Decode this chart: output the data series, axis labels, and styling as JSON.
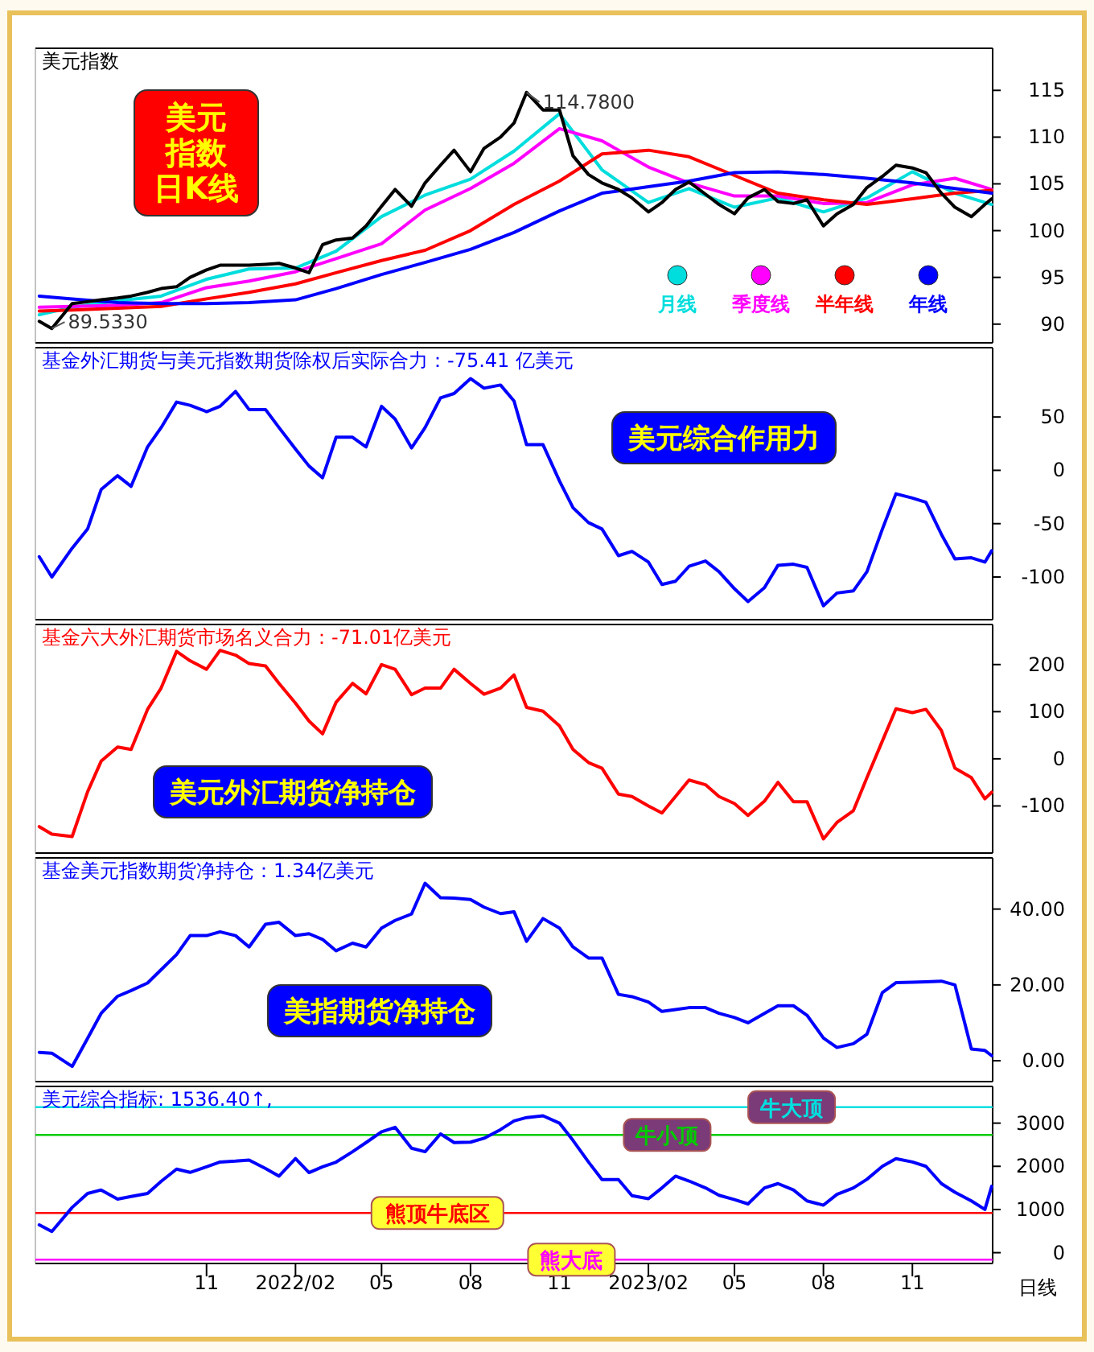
{
  "chart_data": [
    {
      "type": "line",
      "title": "美元指数",
      "annotations": [
        "美元指数日K线",
        {
          "text": "114.7800",
          "x": "2022-09-28",
          "y": 114.78
        },
        {
          "text": "89.5330",
          "x": "2021-05-25",
          "y": 89.533
        }
      ],
      "x": [
        "2021-05-12",
        "2021-05-25",
        "2021-06-15",
        "2021-07-01",
        "2021-07-15",
        "2021-08-01",
        "2021-08-15",
        "2021-09-01",
        "2021-09-15",
        "2021-10-01",
        "2021-10-15",
        "2021-11-01",
        "2021-11-15",
        "2021-12-01",
        "2021-12-15",
        "2022-01-01",
        "2022-01-15",
        "2022-02-01",
        "2022-02-15",
        "2022-03-01",
        "2022-03-15",
        "2022-04-01",
        "2022-04-15",
        "2022-05-01",
        "2022-05-15",
        "2022-06-01",
        "2022-06-15",
        "2022-07-01",
        "2022-07-15",
        "2022-08-01",
        "2022-08-15",
        "2022-09-01",
        "2022-09-15",
        "2022-09-28",
        "2022-10-15",
        "2022-11-01",
        "2022-11-15",
        "2022-12-01",
        "2022-12-15",
        "2023-01-01",
        "2023-01-15",
        "2023-02-01",
        "2023-02-15",
        "2023-03-01",
        "2023-03-15",
        "2023-04-01",
        "2023-04-15",
        "2023-05-01",
        "2023-05-15",
        "2023-06-01",
        "2023-06-15",
        "2023-07-01",
        "2023-07-15",
        "2023-08-01",
        "2023-08-15",
        "2023-09-01",
        "2023-09-15",
        "2023-10-01",
        "2023-10-15",
        "2023-11-01",
        "2023-11-15",
        "2023-12-01",
        "2023-12-15",
        "2024-01-01",
        "2024-01-15",
        "2024-01-22"
      ],
      "xlim": [
        "2021-05-08",
        "2024-01-23"
      ],
      "ylim": [
        88,
        119.5
      ],
      "yticks": [
        90,
        95,
        100,
        105,
        110,
        115
      ],
      "tick_labels": "y",
      "legend": "bottom right",
      "series": [
        {
          "color": "#000000",
          "values": [
            90.3,
            89.533,
            92.2,
            92.4,
            92.6,
            92.8,
            93.0,
            93.4,
            93.8,
            94.0,
            95.0,
            95.8,
            96.3,
            96.3,
            96.3,
            96.4,
            96.5,
            96.0,
            95.5,
            98.5,
            99.0,
            99.2,
            100.5,
            102.6,
            104.4,
            102.6,
            105.1,
            107,
            108.6,
            106.3,
            108.8,
            110,
            111.5,
            114.78,
            112.9,
            112.9,
            108,
            106,
            105.1,
            104.4,
            103.5,
            102,
            103,
            104.4,
            105.2,
            103.9,
            102.8,
            101.8,
            103.5,
            104.4,
            103.1,
            102.9,
            103.3,
            100.5,
            101.8,
            102.8,
            104.6,
            105.8,
            107,
            106.7,
            106.2,
            104,
            102.5,
            101.5,
            102.8,
            103.4
          ]
        },
        {
          "name": "月线",
          "color": "#00dddd",
          "x": [
            "2021-05-12",
            "2021-06-15",
            "2021-08-01",
            "2021-09-15",
            "2021-11-01",
            "2021-12-15",
            "2022-02-01",
            "2022-03-15",
            "2022-05-01",
            "2022-06-15",
            "2022-08-01",
            "2022-09-15",
            "2022-11-01",
            "2022-12-15",
            "2023-02-01",
            "2023-03-15",
            "2023-05-01",
            "2023-06-15",
            "2023-08-01",
            "2023-09-15",
            "2023-11-01",
            "2023-12-15",
            "2024-01-22"
          ],
          "values": [
            91.0,
            91.8,
            92.5,
            93.0,
            94.8,
            95.9,
            96.0,
            97.8,
            101.5,
            103.8,
            105.5,
            108.5,
            112.5,
            106.5,
            103.0,
            104.5,
            102.5,
            103.5,
            102.0,
            103.5,
            106.3,
            104.0,
            102.8
          ]
        },
        {
          "name": "季度线",
          "color": "#ff00ff",
          "x": [
            "2021-05-12",
            "2021-06-15",
            "2021-08-01",
            "2021-09-15",
            "2021-11-01",
            "2021-12-15",
            "2022-02-01",
            "2022-03-15",
            "2022-05-01",
            "2022-06-15",
            "2022-08-01",
            "2022-09-15",
            "2022-11-01",
            "2022-12-15",
            "2023-02-01",
            "2023-03-15",
            "2023-05-01",
            "2023-06-15",
            "2023-08-01",
            "2023-09-15",
            "2023-11-01",
            "2023-12-15",
            "2024-01-22"
          ],
          "values": [
            91.8,
            91.9,
            92.0,
            92.3,
            93.9,
            94.6,
            95.6,
            97.0,
            98.6,
            102.2,
            104.5,
            107.2,
            110.9,
            109.6,
            106.8,
            105.1,
            103.7,
            103.7,
            102.9,
            103.0,
            104.9,
            105.6,
            104.4
          ]
        },
        {
          "name": "半年线",
          "color": "#ff0000",
          "x": [
            "2021-05-12",
            "2021-06-15",
            "2021-08-01",
            "2021-09-15",
            "2021-11-01",
            "2021-12-15",
            "2022-02-01",
            "2022-03-15",
            "2022-05-01",
            "2022-06-15",
            "2022-08-01",
            "2022-09-15",
            "2022-11-01",
            "2022-12-15",
            "2023-02-01",
            "2023-03-15",
            "2023-05-01",
            "2023-06-15",
            "2023-08-01",
            "2023-09-15",
            "2023-11-01",
            "2023-12-15",
            "2024-01-22"
          ],
          "values": [
            91.4,
            91.5,
            91.7,
            91.9,
            92.7,
            93.4,
            94.3,
            95.5,
            96.8,
            97.9,
            100.0,
            102.8,
            105.3,
            108.2,
            108.6,
            107.9,
            105.9,
            104.0,
            103.3,
            102.8,
            103.4,
            104.0,
            104.3
          ]
        },
        {
          "name": "年线",
          "color": "#0000ff",
          "x": [
            "2021-05-12",
            "2021-06-15",
            "2021-08-01",
            "2021-09-15",
            "2021-11-01",
            "2021-12-15",
            "2022-02-01",
            "2022-03-15",
            "2022-05-01",
            "2022-06-15",
            "2022-08-01",
            "2022-09-15",
            "2022-11-01",
            "2022-12-15",
            "2023-02-01",
            "2023-03-15",
            "2023-05-01",
            "2023-06-15",
            "2023-08-01",
            "2023-09-15",
            "2023-11-01",
            "2023-12-15",
            "2024-01-22"
          ],
          "values": [
            93.0,
            92.7,
            92.3,
            92.2,
            92.2,
            92.3,
            92.6,
            93.8,
            95.3,
            96.6,
            98.0,
            99.8,
            102.1,
            104.0,
            104.7,
            105.3,
            106.2,
            106.3,
            106.0,
            105.6,
            105.1,
            104.5,
            104.0
          ]
        }
      ]
    },
    {
      "type": "line",
      "title": "基金外汇期货与美元指数期货除权后实际合力：-75.41 亿美元",
      "annotations": [
        "美元综合作用力"
      ],
      "x": [
        "2021-05-12",
        "2021-05-25",
        "2021-06-15",
        "2021-07-01",
        "2021-07-15",
        "2021-08-01",
        "2021-08-15",
        "2021-09-01",
        "2021-09-15",
        "2021-10-01",
        "2021-10-15",
        "2021-11-01",
        "2021-11-15",
        "2021-12-01",
        "2021-12-15",
        "2022-01-01",
        "2022-01-15",
        "2022-02-01",
        "2022-02-15",
        "2022-03-01",
        "2022-03-15",
        "2022-04-01",
        "2022-04-15",
        "2022-05-01",
        "2022-05-15",
        "2022-06-01",
        "2022-06-15",
        "2022-07-01",
        "2022-07-15",
        "2022-08-01",
        "2022-08-15",
        "2022-09-01",
        "2022-09-15",
        "2022-09-28",
        "2022-10-15",
        "2022-11-01",
        "2022-11-15",
        "2022-12-01",
        "2022-12-15",
        "2023-01-01",
        "2023-01-15",
        "2023-02-01",
        "2023-02-15",
        "2023-03-01",
        "2023-03-15",
        "2023-04-01",
        "2023-04-15",
        "2023-05-01",
        "2023-05-15",
        "2023-06-01",
        "2023-06-15",
        "2023-07-01",
        "2023-07-15",
        "2023-08-01",
        "2023-08-15",
        "2023-09-01",
        "2023-09-15",
        "2023-10-01",
        "2023-10-15",
        "2023-11-01",
        "2023-11-15",
        "2023-12-01",
        "2023-12-15",
        "2024-01-01",
        "2024-01-15",
        "2024-01-22"
      ],
      "xlim": [
        "2021-05-08",
        "2024-01-23"
      ],
      "ylim": [
        -140,
        115
      ],
      "yticks": [
        -100,
        -50,
        0,
        50
      ],
      "tick_labels": "y",
      "series": [
        {
          "color": "#0000ff",
          "values": [
            -81,
            -100,
            -73,
            -55,
            -18,
            -5,
            -15,
            22,
            40,
            64,
            61,
            55,
            60,
            74,
            57,
            57,
            40,
            20,
            4,
            -7,
            31,
            31,
            22,
            60,
            48,
            21,
            40,
            68,
            72,
            86,
            77,
            80,
            65,
            24,
            24,
            -10,
            -35,
            -49,
            -55,
            -80,
            -76,
            -86,
            -107,
            -104,
            -90,
            -85,
            -95,
            -111,
            -123,
            -110,
            -89,
            -88,
            -91,
            -127,
            -115,
            -113,
            -95,
            -55,
            -22,
            -26,
            -30,
            -60,
            -83,
            -82,
            -86,
            -75.41
          ]
        }
      ]
    },
    {
      "type": "line",
      "title": "基金六大外汇期货市场名义合力：-71.01亿美元",
      "annotations": [
        "美元外汇期货净持仓"
      ],
      "x": [
        "2021-05-12",
        "2021-05-25",
        "2021-06-15",
        "2021-07-01",
        "2021-07-15",
        "2021-08-01",
        "2021-08-15",
        "2021-09-01",
        "2021-09-15",
        "2021-10-01",
        "2021-10-15",
        "2021-11-01",
        "2021-11-15",
        "2021-12-01",
        "2021-12-15",
        "2022-01-01",
        "2022-01-15",
        "2022-02-01",
        "2022-02-15",
        "2022-03-01",
        "2022-03-15",
        "2022-04-01",
        "2022-04-15",
        "2022-05-01",
        "2022-05-15",
        "2022-06-01",
        "2022-06-15",
        "2022-07-01",
        "2022-07-15",
        "2022-08-01",
        "2022-08-15",
        "2022-09-01",
        "2022-09-15",
        "2022-09-28",
        "2022-10-15",
        "2022-11-01",
        "2022-11-15",
        "2022-12-01",
        "2022-12-15",
        "2023-01-01",
        "2023-01-15",
        "2023-02-01",
        "2023-02-15",
        "2023-03-01",
        "2023-03-15",
        "2023-04-01",
        "2023-04-15",
        "2023-05-01",
        "2023-05-15",
        "2023-06-01",
        "2023-06-15",
        "2023-07-01",
        "2023-07-15",
        "2023-08-01",
        "2023-08-15",
        "2023-09-01",
        "2023-09-15",
        "2023-10-01",
        "2023-10-15",
        "2023-11-01",
        "2023-11-15",
        "2023-12-01",
        "2023-12-15",
        "2024-01-01",
        "2024-01-15",
        "2024-01-22"
      ],
      "xlim": [
        "2021-05-08",
        "2024-01-23"
      ],
      "ylim": [
        -200,
        285
      ],
      "yticks": [
        -100,
        0,
        100,
        200
      ],
      "tick_labels": "y",
      "series": [
        {
          "color": "#ff0000",
          "values": [
            -144,
            -160,
            -165,
            -70,
            -5,
            25,
            20,
            105,
            150,
            228,
            208,
            190,
            230,
            220,
            202,
            197,
            160,
            118,
            80,
            53,
            120,
            160,
            138,
            200,
            190,
            136,
            150,
            150,
            190,
            160,
            137,
            150,
            178,
            109,
            101,
            70,
            20,
            -8,
            -20,
            -75,
            -80,
            -100,
            -115,
            -80,
            -45,
            -55,
            -80,
            -95,
            -120,
            -90,
            -50,
            -91,
            -91,
            -170,
            -135,
            -110,
            -40,
            38,
            106,
            98,
            105,
            60,
            -20,
            -40,
            -85,
            -71.01
          ]
        }
      ]
    },
    {
      "type": "line",
      "title": "基金美元指数期货净持仓：1.34亿美元",
      "annotations": [
        "美指期货净持仓"
      ],
      "x": [
        "2021-05-12",
        "2021-05-25",
        "2021-06-15",
        "2021-07-01",
        "2021-07-15",
        "2021-08-01",
        "2021-08-15",
        "2021-09-01",
        "2021-09-15",
        "2021-10-01",
        "2021-10-15",
        "2021-11-01",
        "2021-11-15",
        "2021-12-01",
        "2021-12-15",
        "2022-01-01",
        "2022-01-15",
        "2022-02-01",
        "2022-02-15",
        "2022-03-01",
        "2022-03-15",
        "2022-04-01",
        "2022-04-15",
        "2022-05-01",
        "2022-05-15",
        "2022-06-01",
        "2022-06-15",
        "2022-07-01",
        "2022-07-15",
        "2022-08-01",
        "2022-08-15",
        "2022-09-01",
        "2022-09-15",
        "2022-09-28",
        "2022-10-15",
        "2022-11-01",
        "2022-11-15",
        "2022-12-01",
        "2022-12-15",
        "2023-01-01",
        "2023-01-15",
        "2023-02-01",
        "2023-02-15",
        "2023-03-01",
        "2023-03-15",
        "2023-04-01",
        "2023-04-15",
        "2023-05-01",
        "2023-05-15",
        "2023-06-01",
        "2023-06-15",
        "2023-07-01",
        "2023-07-15",
        "2023-08-01",
        "2023-08-15",
        "2023-09-01",
        "2023-09-15",
        "2023-10-01",
        "2023-10-15",
        "2023-11-01",
        "2023-11-15",
        "2023-12-01",
        "2023-12-15",
        "2024-01-01",
        "2024-01-15",
        "2024-01-22"
      ],
      "xlim": [
        "2021-05-08",
        "2024-01-23"
      ],
      "ylim": [
        -5.5,
        53.5
      ],
      "yticks": [
        {
          "value": 0,
          "label": "0.00"
        },
        {
          "value": 20,
          "label": "20.00"
        },
        {
          "value": 40,
          "label": "40.00"
        }
      ],
      "tick_labels": "y",
      "series": [
        {
          "color": "#0000ff",
          "values": [
            2.2,
            2.0,
            -1.5,
            5.9,
            12.5,
            17,
            18.5,
            20.5,
            24,
            28,
            33,
            33,
            34,
            33,
            30,
            36,
            36.5,
            33,
            33.5,
            32,
            29,
            31,
            30,
            35,
            37,
            38.7,
            46.8,
            43,
            42.9,
            42.5,
            40.5,
            38.8,
            39.3,
            31.5,
            37.5,
            35,
            30,
            27.1,
            27.1,
            17.5,
            16.9,
            15.5,
            13,
            13.5,
            14,
            14,
            12.5,
            11.4,
            10,
            12.5,
            14.5,
            14.5,
            12,
            6,
            3.5,
            4.5,
            7,
            18,
            20.6,
            20.7,
            20.8,
            21,
            20,
            3.1,
            2.7,
            1.34
          ]
        }
      ]
    },
    {
      "type": "line",
      "title": "美元综合指标: 1536.40↑,",
      "annotations": [
        "日线"
      ],
      "x": [
        "2021-05-12",
        "2021-05-25",
        "2021-06-15",
        "2021-07-01",
        "2021-07-15",
        "2021-08-01",
        "2021-08-15",
        "2021-09-01",
        "2021-09-15",
        "2021-10-01",
        "2021-10-15",
        "2021-11-01",
        "2021-11-15",
        "2021-12-01",
        "2021-12-15",
        "2022-01-01",
        "2022-01-15",
        "2022-02-01",
        "2022-02-15",
        "2022-03-01",
        "2022-03-15",
        "2022-04-01",
        "2022-04-15",
        "2022-05-01",
        "2022-05-15",
        "2022-06-01",
        "2022-06-15",
        "2022-07-01",
        "2022-07-15",
        "2022-08-01",
        "2022-08-15",
        "2022-09-01",
        "2022-09-15",
        "2022-09-28",
        "2022-10-15",
        "2022-11-01",
        "2022-11-15",
        "2022-12-01",
        "2022-12-15",
        "2023-01-01",
        "2023-01-15",
        "2023-02-01",
        "2023-02-15",
        "2023-03-01",
        "2023-03-15",
        "2023-04-01",
        "2023-04-15",
        "2023-05-01",
        "2023-05-15",
        "2023-06-01",
        "2023-06-15",
        "2023-07-01",
        "2023-07-15",
        "2023-08-01",
        "2023-08-15",
        "2023-09-01",
        "2023-09-15",
        "2023-10-01",
        "2023-10-15",
        "2023-11-01",
        "2023-11-15",
        "2023-12-01",
        "2023-12-15",
        "2024-01-01",
        "2024-01-15",
        "2024-01-22"
      ],
      "xlim": [
        "2021-05-08",
        "2024-01-23"
      ],
      "ylim": [
        -250,
        3850
      ],
      "yticks": [
        0,
        1000,
        2000,
        3000
      ],
      "xticks": [
        {
          "value": "2021-11-01",
          "label": "11"
        },
        {
          "value": "2022-02-01",
          "label": "2022/02"
        },
        {
          "value": "2022-05-01",
          "label": "05"
        },
        {
          "value": "2022-08-01",
          "label": "08"
        },
        {
          "value": "2022-11-01",
          "label": "11"
        },
        {
          "value": "2023-02-01",
          "label": "2023/02"
        },
        {
          "value": "2023-05-01",
          "label": "05"
        },
        {
          "value": "2023-08-01",
          "label": "08"
        },
        {
          "value": "2023-11-01",
          "label": "11"
        }
      ],
      "ref_lines": [
        {
          "axis": "y",
          "value": 3371,
          "label": "牛大顶",
          "color": "#00e0e0"
        },
        {
          "axis": "y",
          "value": 2726,
          "label": "牛小顶",
          "color": "#00cc00"
        },
        {
          "axis": "y",
          "value": 919,
          "label": "熊顶牛底区",
          "color": "#ff0000"
        },
        {
          "axis": "y",
          "value": -161,
          "label": "熊大底",
          "color": "#ff00ff"
        }
      ],
      "series": [
        {
          "color": "#0000ff",
          "values": [
            645,
            490,
            1048,
            1371,
            1452,
            1242,
            1300,
            1371,
            1650,
            1936,
            1860,
            1990,
            2100,
            2120,
            2145,
            1950,
            1774,
            2178,
            1855,
            1990,
            2097,
            2339,
            2550,
            2800,
            2903,
            2420,
            2339,
            2750,
            2550,
            2560,
            2650,
            2850,
            3050,
            3130,
            3170,
            3000,
            2600,
            2100,
            1694,
            1694,
            1320,
            1250,
            1500,
            1774,
            1660,
            1500,
            1330,
            1230,
            1129,
            1500,
            1600,
            1452,
            1200,
            1100,
            1350,
            1500,
            1700,
            2000,
            2178,
            2100,
            2000,
            1600,
            1400,
            1200,
            1000,
            1536.4
          ]
        }
      ]
    }
  ]
}
